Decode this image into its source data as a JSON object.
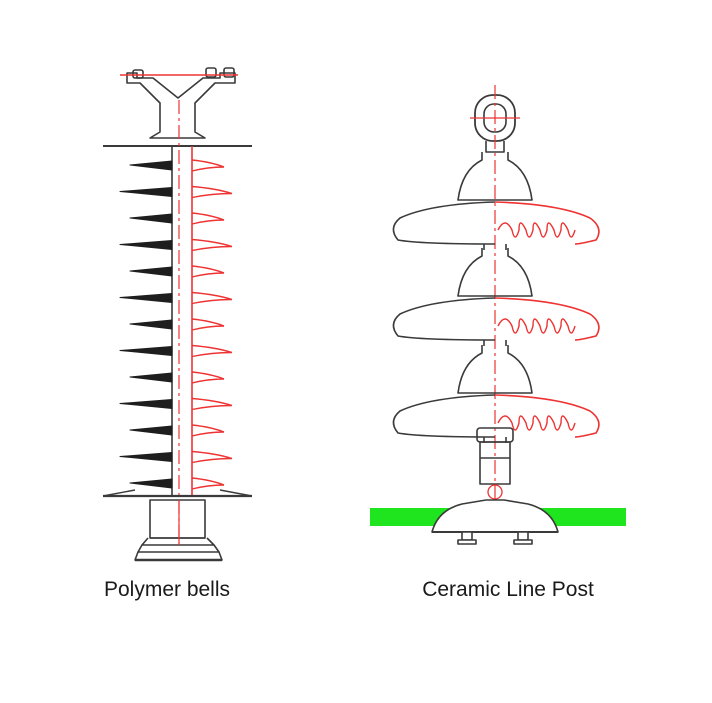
{
  "diagrams": [
    {
      "caption": "Polymer bells"
    },
    {
      "caption": "Ceramic Line Post"
    }
  ],
  "colors": {
    "outline": "#3a3a3a",
    "dark_shed": "#1e1e1e",
    "red_line": "#ee3333",
    "ground": "#1fe51f",
    "background": "#ffffff"
  }
}
